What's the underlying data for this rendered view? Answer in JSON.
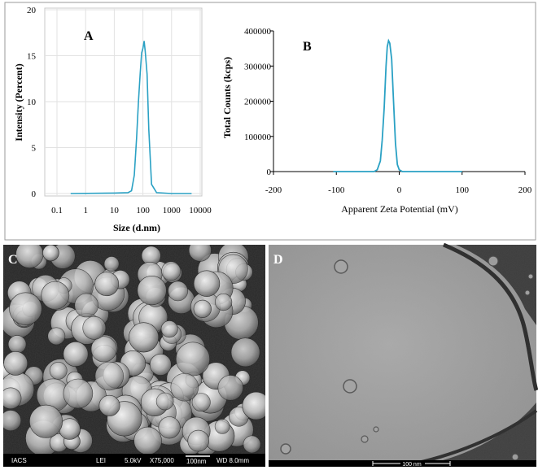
{
  "chart_data": [
    {
      "panel": "A",
      "type": "line",
      "xscale": "log",
      "xlabel": "Size (d.nm)",
      "ylabel": "Intensity (Percent)",
      "xticks": [
        "0.1",
        "1",
        "10",
        "100",
        "1000",
        "10000"
      ],
      "yticks": [
        "0",
        "5",
        "10",
        "15",
        "20"
      ],
      "xlim": [
        0.1,
        10000
      ],
      "ylim": [
        0,
        20
      ],
      "color": "#2aa1c4",
      "x": [
        0.3,
        10,
        30,
        40,
        50,
        60,
        70,
        80,
        90,
        100,
        110,
        120,
        140,
        160,
        200,
        300,
        1000,
        5000
      ],
      "y": [
        0,
        0.05,
        0.1,
        0.3,
        2,
        6,
        10,
        13,
        15.3,
        15.8,
        16.6,
        15.5,
        13,
        7,
        1,
        0.1,
        0,
        0
      ]
    },
    {
      "panel": "B",
      "type": "line",
      "xlabel": "Apparent Zeta Potential (mV)",
      "ylabel": "Total Counts (kcps)",
      "xticks": [
        "-200",
        "-100",
        "0",
        "100",
        "200"
      ],
      "yticks": [
        "0",
        "100000",
        "200000",
        "300000",
        "400000"
      ],
      "xlim": [
        -200,
        200
      ],
      "ylim": [
        0,
        400000
      ],
      "color": "#2aa1c4",
      "x": [
        -105,
        -40,
        -35,
        -30,
        -27,
        -24,
        -21,
        -19,
        -17,
        -15,
        -12,
        -9,
        -6,
        -3,
        0,
        5,
        100
      ],
      "y": [
        0,
        0,
        5000,
        30000,
        90000,
        180000,
        300000,
        355000,
        372000,
        365000,
        320000,
        200000,
        80000,
        20000,
        5000,
        0,
        0
      ]
    }
  ],
  "micrographs": {
    "C": {
      "letter": "C",
      "infobar": {
        "lab": "IACS",
        "detector": "LEI",
        "voltage": "5.0kV",
        "magnification": "X75,000",
        "scalebar": "100nm",
        "wd": "WD 8.0mm"
      }
    },
    "D": {
      "letter": "D",
      "scalebar": "100 nm"
    }
  }
}
